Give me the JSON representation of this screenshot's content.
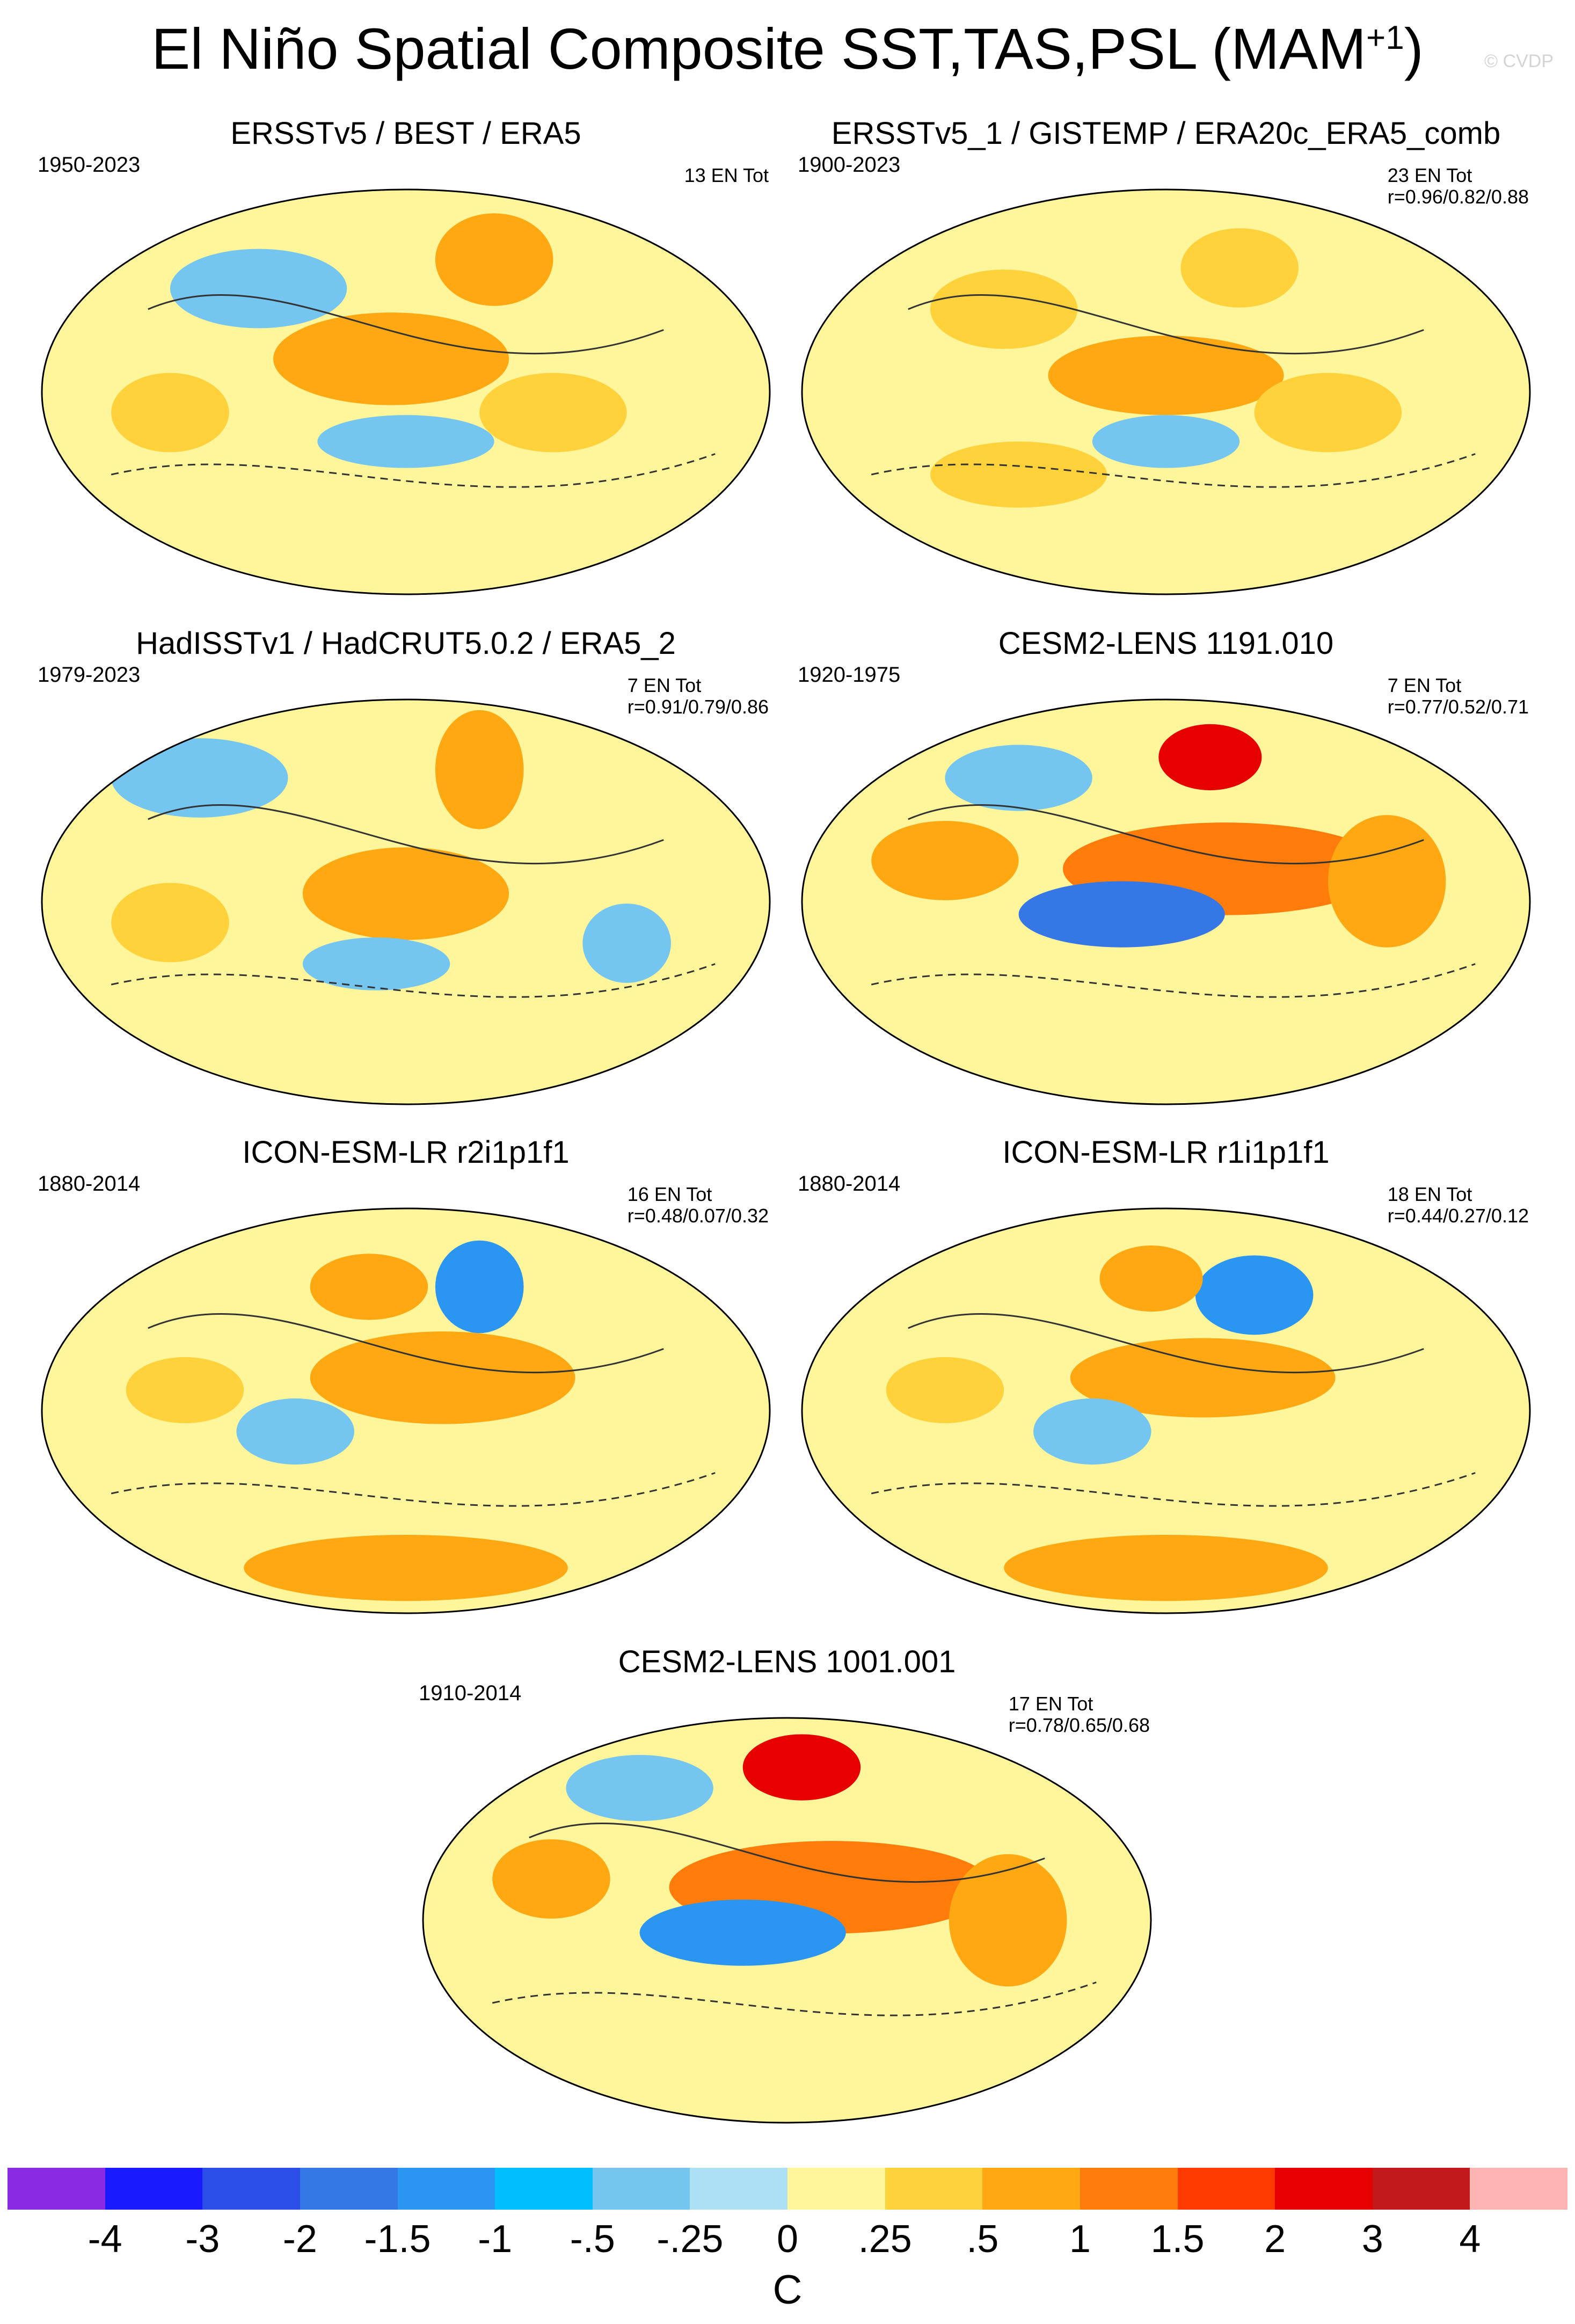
{
  "title": {
    "text": "El Niño Spatial Composite SST,TAS,PSL (MAM",
    "superscript": "+1",
    "close": ")"
  },
  "watermark": "© CVDP",
  "panels": [
    {
      "title": "ERSSTv5 / BEST / ERA5",
      "years": "1950-2023",
      "count": "13 EN Tot",
      "r": ""
    },
    {
      "title": "ERSSTv5_1 / GISTEMP / ERA20c_ERA5_comb",
      "years": "1900-2023",
      "count": "23 EN Tot",
      "r": "r=0.96/0.82/0.88"
    },
    {
      "title": "HadISSTv1 / HadCRUT5.0.2 / ERA5_2",
      "years": "1979-2023",
      "count": "7 EN Tot",
      "r": "r=0.91/0.79/0.86"
    },
    {
      "title": "CESM2-LENS 1191.010",
      "years": "1920-1975",
      "count": "7 EN Tot",
      "r": "r=0.77/0.52/0.71"
    },
    {
      "title": "ICON-ESM-LR r2i1p1f1",
      "years": "1880-2014",
      "count": "16 EN Tot",
      "r": "r=0.48/0.07/0.32"
    },
    {
      "title": "ICON-ESM-LR r1i1p1f1",
      "years": "1880-2014",
      "count": "18 EN Tot",
      "r": "r=0.44/0.27/0.12"
    },
    {
      "title": "CESM2-LENS 1001.001",
      "years": "1910-2014",
      "count": "17 EN Tot",
      "r": "r=0.78/0.65/0.68"
    }
  ],
  "colorbar": {
    "colors": [
      "#8a2be2",
      "#1a1aff",
      "#2b4ee6",
      "#3677e6",
      "#2a96f2",
      "#00bfff",
      "#74c6f0",
      "#aee0f5",
      "#fff59a",
      "#ffd23c",
      "#ffa812",
      "#ff7c0a",
      "#ff3a00",
      "#e60000",
      "#c21a1a",
      "#ffb4b4"
    ],
    "ticks": [
      "-4",
      "-3",
      "-2",
      "-1.5",
      "-1",
      "-.5",
      "-.25",
      "0",
      ".25",
      ".5",
      "1",
      "1.5",
      "2",
      "3",
      "4"
    ],
    "units": "C"
  }
}
